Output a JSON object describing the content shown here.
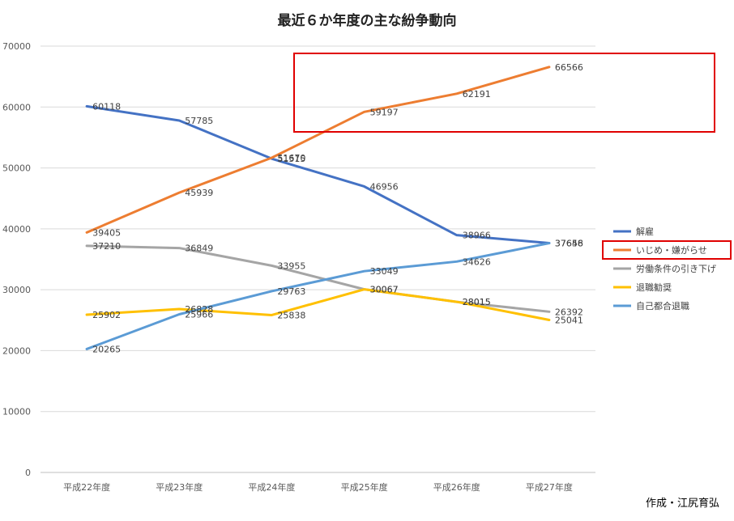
{
  "chart_data": {
    "type": "line",
    "title": "最近６か年度の主な紛争動向",
    "categories": [
      "平成22年度",
      "平成23年度",
      "平成24年度",
      "平成25年度",
      "平成26年度",
      "平成27年度"
    ],
    "ylim": [
      0,
      70000
    ],
    "yticks": [
      0,
      10000,
      20000,
      30000,
      40000,
      50000,
      60000,
      70000
    ],
    "grid": true,
    "legend_position": "right",
    "series": [
      {
        "name": "解雇",
        "color": "#4472C4",
        "values": [
          60118,
          57785,
          51515,
          46956,
          38966,
          37656
        ]
      },
      {
        "name": "いじめ・嫌がらせ",
        "color": "#ED7D31",
        "values": [
          39405,
          45939,
          51670,
          59197,
          62191,
          66566
        ]
      },
      {
        "name": "労働条件の引き下げ",
        "color": "#A5A5A5",
        "values": [
          37210,
          36849,
          33955,
          30067,
          28015,
          26392
        ]
      },
      {
        "name": "退職勧奨",
        "color": "#FFC000",
        "values": [
          25902,
          26828,
          25838,
          30067,
          28015,
          25041
        ]
      },
      {
        "name": "自己都合退職",
        "color": "#5B9BD5",
        "values": [
          20265,
          25966,
          29763,
          33049,
          34626,
          37648
        ]
      }
    ],
    "highlight_color": "#E00000"
  },
  "credit": "作成・江尻育弘"
}
